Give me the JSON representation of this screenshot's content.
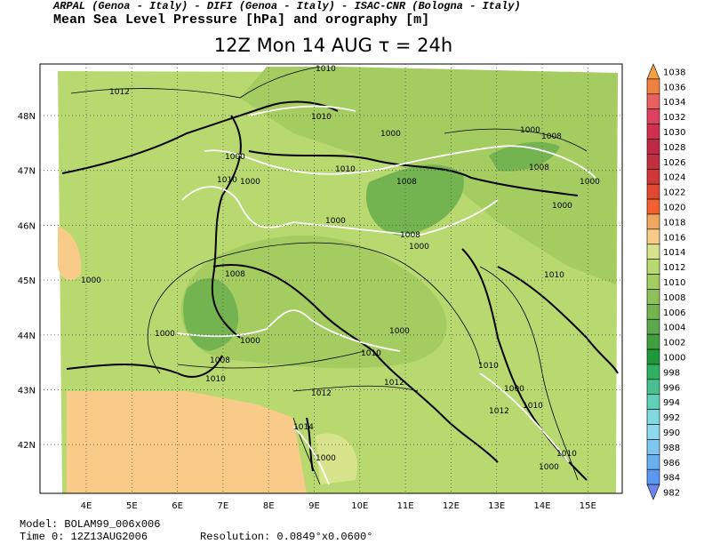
{
  "header": {
    "institutions": "ARPAL (Genoa - Italy)  -  DIFI (Genoa - Italy)  -  ISAC-CNR (Bologna - Italy)",
    "field": "Mean Sea Level Pressure [hPa] and orography [m]",
    "time": "12Z Mon 14 AUG  τ = 24h"
  },
  "map": {
    "lon_labels": [
      "4E",
      "5E",
      "6E",
      "7E",
      "8E",
      "9E",
      "10E",
      "11E",
      "12E",
      "13E",
      "14E",
      "15E"
    ],
    "lat_labels": [
      "48N",
      "47N",
      "46N",
      "45N",
      "44N",
      "43N",
      "42N"
    ],
    "contour_labels": [
      "1010",
      "1012",
      "1010",
      "1000",
      "1000",
      "1008",
      "1000",
      "1010",
      "1008",
      "1010",
      "1000",
      "1008",
      "1000",
      "1000",
      "1000",
      "1008",
      "1000",
      "1000",
      "1008",
      "1010",
      "1000",
      "1000",
      "1000",
      "1010",
      "1008",
      "1010",
      "1010",
      "1012",
      "1000",
      "1012",
      "1010",
      "1012",
      "1014",
      "1010",
      "1000",
      "1000"
    ]
  },
  "colorbar": {
    "labels": [
      "1038",
      "1036",
      "1034",
      "1032",
      "1030",
      "1028",
      "1026",
      "1024",
      "1022",
      "1020",
      "1018",
      "1016",
      "1014",
      "1012",
      "1010",
      "1008",
      "1006",
      "1004",
      "1002",
      "1000",
      "998",
      "996",
      "994",
      "992",
      "990",
      "988",
      "986",
      "984",
      "982"
    ],
    "colors": [
      "#f4a040",
      "#f08040",
      "#e86060",
      "#e04060",
      "#d03050",
      "#c02848",
      "#c03040",
      "#d03838",
      "#e04830",
      "#f06030",
      "#f0a860",
      "#f8cc88",
      "#d8e48c",
      "#b8d870",
      "#a4cc60",
      "#8cc05c",
      "#74b450",
      "#5ca84c",
      "#40a040",
      "#209838",
      "#30b060",
      "#48c090",
      "#60d0b8",
      "#80d8e0",
      "#90d8f0",
      "#80c4f0",
      "#68b0f0",
      "#5c98f0",
      "#6c84f0"
    ]
  },
  "footer": {
    "model": "Model: BOLAM99_006x006",
    "time0": "Time 0: 12Z13AUG2006",
    "resolution": "Resolution: 0.0849°x0.0600°"
  }
}
